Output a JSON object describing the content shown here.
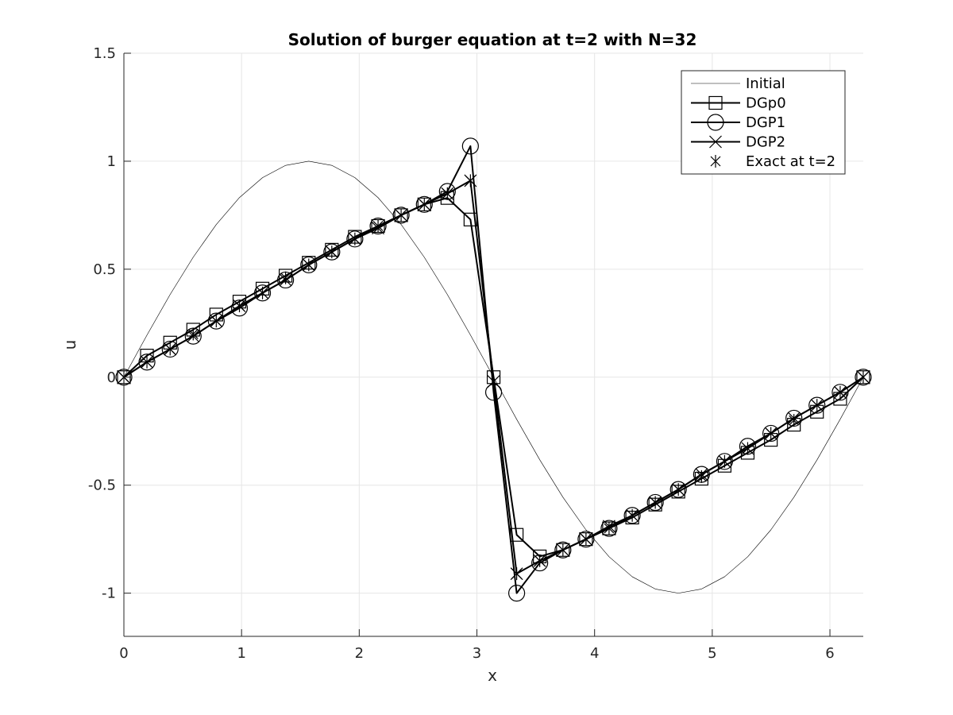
{
  "chart_data": {
    "type": "line",
    "title": "Solution of burger equation at t=2 with N=32",
    "xlabel": "x",
    "ylabel": "u",
    "xlim": [
      0,
      6.2832
    ],
    "ylim": [
      -1.2,
      1.5
    ],
    "xticks": [
      0,
      1,
      2,
      3,
      4,
      5,
      6
    ],
    "yticks": [
      -1,
      -0.5,
      0,
      0.5,
      1,
      1.5
    ],
    "xtick_labels": [
      "0",
      "1",
      "2",
      "3",
      "4",
      "5",
      "6"
    ],
    "ytick_labels": [
      "-1",
      "-0.5",
      "0",
      "0.5",
      "1",
      "1.5"
    ],
    "grid": true,
    "legend_position": "top-right",
    "series": [
      {
        "name": "Initial",
        "marker": "none",
        "line_width": 0.6,
        "function": "sin",
        "x_range": [
          0,
          6.2832
        ],
        "samples": 33
      },
      {
        "name": "DGp0",
        "marker": "square",
        "line_width": 2,
        "x": [
          0,
          0.196,
          0.393,
          0.589,
          0.785,
          0.982,
          1.178,
          1.374,
          1.571,
          1.767,
          1.963,
          2.16,
          2.356,
          2.553,
          2.749,
          2.945,
          3.142,
          3.338,
          3.534,
          3.731,
          3.927,
          4.123,
          4.32,
          4.516,
          4.712,
          4.909,
          5.105,
          5.301,
          5.498,
          5.694,
          5.89,
          6.087,
          6.283
        ],
        "y": [
          0,
          0.1,
          0.16,
          0.22,
          0.29,
          0.35,
          0.41,
          0.47,
          0.53,
          0.59,
          0.65,
          0.7,
          0.75,
          0.8,
          0.83,
          0.73,
          0.0,
          -0.73,
          -0.83,
          -0.8,
          -0.75,
          -0.7,
          -0.65,
          -0.59,
          -0.53,
          -0.47,
          -0.41,
          -0.35,
          -0.29,
          -0.22,
          -0.16,
          -0.1,
          0
        ]
      },
      {
        "name": "DGP1",
        "marker": "circle",
        "line_width": 2,
        "x": [
          0,
          0.196,
          0.393,
          0.589,
          0.785,
          0.982,
          1.178,
          1.374,
          1.571,
          1.767,
          1.963,
          2.16,
          2.356,
          2.553,
          2.749,
          2.945,
          3.142,
          3.338,
          3.534,
          3.731,
          3.927,
          4.123,
          4.32,
          4.516,
          4.712,
          4.909,
          5.105,
          5.301,
          5.498,
          5.694,
          5.89,
          6.087,
          6.283
        ],
        "y": [
          0,
          0.07,
          0.13,
          0.19,
          0.26,
          0.32,
          0.39,
          0.45,
          0.52,
          0.58,
          0.64,
          0.7,
          0.75,
          0.8,
          0.86,
          1.07,
          -0.07,
          -1.0,
          -0.86,
          -0.8,
          -0.75,
          -0.7,
          -0.64,
          -0.58,
          -0.52,
          -0.45,
          -0.39,
          -0.32,
          -0.26,
          -0.19,
          -0.13,
          -0.07,
          0
        ]
      },
      {
        "name": "DGP2",
        "marker": "x",
        "line_width": 2,
        "x": [
          0,
          0.196,
          0.393,
          0.589,
          0.785,
          0.982,
          1.178,
          1.374,
          1.571,
          1.767,
          1.963,
          2.16,
          2.356,
          2.553,
          2.749,
          2.945,
          3.142,
          3.338,
          3.534,
          3.731,
          3.927,
          4.123,
          4.32,
          4.516,
          4.712,
          4.909,
          5.105,
          5.301,
          5.498,
          5.694,
          5.89,
          6.087,
          6.283
        ],
        "y": [
          0,
          0.07,
          0.13,
          0.19,
          0.26,
          0.33,
          0.39,
          0.45,
          0.52,
          0.58,
          0.64,
          0.69,
          0.75,
          0.8,
          0.85,
          0.91,
          -0.02,
          -0.91,
          -0.85,
          -0.8,
          -0.75,
          -0.69,
          -0.64,
          -0.58,
          -0.52,
          -0.45,
          -0.39,
          -0.33,
          -0.26,
          -0.19,
          -0.13,
          -0.07,
          0
        ]
      },
      {
        "name": "Exact at t=2",
        "marker": "asterisk",
        "line_width": 0,
        "x": [
          0,
          0.196,
          0.393,
          0.589,
          0.785,
          0.982,
          1.178,
          1.374,
          1.571,
          1.767,
          1.963,
          2.16,
          2.356,
          2.553,
          2.749,
          2.945,
          3.338,
          3.534,
          3.731,
          3.927,
          4.123,
          4.32,
          4.516,
          4.712,
          4.909,
          5.105,
          5.301,
          5.498,
          5.694,
          5.89,
          6.087,
          6.283
        ],
        "y": [
          0,
          0.07,
          0.13,
          0.2,
          0.26,
          0.33,
          0.39,
          0.46,
          0.52,
          0.58,
          0.64,
          0.7,
          0.75,
          0.8,
          0.85,
          0.91,
          -0.91,
          -0.85,
          -0.8,
          -0.75,
          -0.7,
          -0.64,
          -0.58,
          -0.52,
          -0.46,
          -0.39,
          -0.33,
          -0.26,
          -0.2,
          -0.13,
          -0.07,
          0
        ]
      }
    ]
  },
  "colors": {
    "series": "#000000",
    "grid": "#e6e6e6",
    "axis": "#262626",
    "background": "#ffffff"
  }
}
